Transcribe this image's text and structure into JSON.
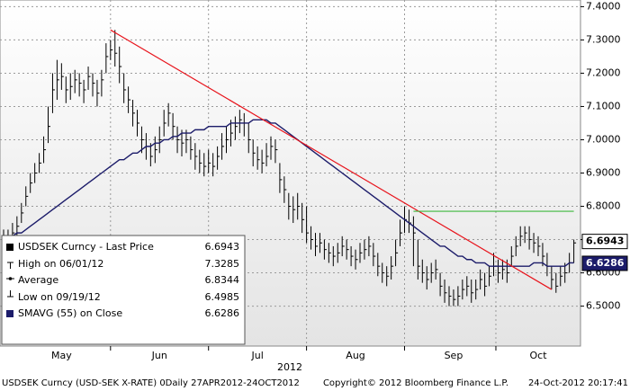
{
  "chart_data": {
    "type": "ohlc",
    "legend": [
      {
        "label": "USDSEK Curncy - Last Price",
        "value": 6.6943
      },
      {
        "label": "High on 06/01/12",
        "value": 7.3285
      },
      {
        "label": "Average",
        "value": 6.8344
      },
      {
        "label": "Low on 09/19/12",
        "value": 6.4985
      },
      {
        "label": "SMAVG (55) on Close",
        "value": 6.6286
      }
    ],
    "year_label": "2012",
    "footer_left": "USDSEK Curncy (USD-SEK X-RATE) 0Daily 27APR2012-24OCT2012",
    "footer_center": "Copyright© 2012 Bloomberg Finance L.P.",
    "footer_right": "24-Oct-2012 20:17:41",
    "ylim": [
      6.38,
      7.42
    ],
    "yticks": [
      {
        "value": 6.5,
        "label": "6.5000"
      },
      {
        "value": 6.6,
        "label": "6.6000"
      },
      {
        "value": 6.7,
        "label": "6.7000"
      },
      {
        "value": 6.8,
        "label": "6.8000"
      },
      {
        "value": 6.9,
        "label": "6.9000"
      },
      {
        "value": 7.0,
        "label": "7.0000"
      },
      {
        "value": 7.1,
        "label": "7.1000"
      },
      {
        "value": 7.2,
        "label": "7.2000"
      },
      {
        "value": 7.3,
        "label": "7.3000"
      },
      {
        "value": 7.4,
        "label": "7.4000"
      }
    ],
    "grid": true,
    "categories": [
      null,
      null,
      null,
      null,
      null,
      null,
      null,
      null,
      null,
      null,
      null,
      null,
      null,
      "May",
      null,
      null,
      null,
      null,
      null,
      null,
      null,
      null,
      null,
      null,
      null,
      null,
      null,
      null,
      null,
      null,
      null,
      null,
      null,
      null,
      null,
      "Jun",
      null,
      null,
      null,
      null,
      null,
      null,
      null,
      null,
      null,
      null,
      null,
      null,
      null,
      null,
      null,
      null,
      null,
      null,
      null,
      null,
      null,
      "Jul",
      null,
      null,
      null,
      null,
      null,
      null,
      null,
      null,
      null,
      null,
      null,
      null,
      null,
      null,
      null,
      null,
      null,
      null,
      null,
      null,
      null,
      "Aug",
      null,
      null,
      null,
      null,
      null,
      null,
      null,
      null,
      null,
      null,
      null,
      null,
      null,
      null,
      null,
      null,
      null,
      null,
      null,
      null,
      null,
      "Sep",
      null,
      null,
      null,
      null,
      null,
      null,
      null,
      null,
      null,
      null,
      null,
      null,
      null,
      null,
      null,
      null,
      null,
      null,
      "Oct",
      null,
      null,
      null,
      null,
      null,
      null,
      null,
      null
    ],
    "price": {
      "color": "#000000",
      "high": [
        6.73,
        6.73,
        6.75,
        6.77,
        6.81,
        6.86,
        6.9,
        6.93,
        6.96,
        7.01,
        7.1,
        7.2,
        7.24,
        7.23,
        7.19,
        7.2,
        7.21,
        7.2,
        7.18,
        7.22,
        7.2,
        7.18,
        7.21,
        7.29,
        7.3,
        7.33,
        7.28,
        7.2,
        7.16,
        7.12,
        7.09,
        7.04,
        7.02,
        6.99,
        7.01,
        7.04,
        7.09,
        7.11,
        7.08,
        7.04,
        7.03,
        7.03,
        7.01,
        6.99,
        6.97,
        6.96,
        6.97,
        6.96,
        6.98,
        7.02,
        7.04,
        7.06,
        7.07,
        7.09,
        7.08,
        7.05,
        7.0,
        6.98,
        6.97,
        6.99,
        7.01,
        7.0,
        6.93,
        6.89,
        6.84,
        6.83,
        6.84,
        6.81,
        6.8,
        6.74,
        6.72,
        6.72,
        6.7,
        6.69,
        6.68,
        6.69,
        6.71,
        6.7,
        6.68,
        6.67,
        6.69,
        6.7,
        6.71,
        6.69,
        6.66,
        6.63,
        6.62,
        6.65,
        6.7,
        6.76,
        6.8,
        6.79,
        6.77,
        6.7,
        6.64,
        6.62,
        6.63,
        6.64,
        6.6,
        6.58,
        6.56,
        6.55,
        6.56,
        6.58,
        6.59,
        6.58,
        6.58,
        6.61,
        6.6,
        6.62,
        6.66,
        6.64,
        6.64,
        6.64,
        6.68,
        6.71,
        6.74,
        6.74,
        6.74,
        6.72,
        6.71,
        6.69,
        6.66,
        6.62,
        6.6,
        6.62,
        6.63,
        6.66,
        6.7
      ],
      "low": [
        6.68,
        6.69,
        6.7,
        6.71,
        6.75,
        6.8,
        6.84,
        6.87,
        6.9,
        6.93,
        6.99,
        7.08,
        7.12,
        7.15,
        7.11,
        7.12,
        7.14,
        7.13,
        7.11,
        7.15,
        7.13,
        7.1,
        7.13,
        7.2,
        7.24,
        7.22,
        7.17,
        7.11,
        7.08,
        7.04,
        7.01,
        6.96,
        6.94,
        6.92,
        6.93,
        6.96,
        7.01,
        7.04,
        7.0,
        6.96,
        6.95,
        6.96,
        6.94,
        6.91,
        6.9,
        6.89,
        6.9,
        6.89,
        6.91,
        6.94,
        6.96,
        6.98,
        7.0,
        7.02,
        7.01,
        6.96,
        6.92,
        6.91,
        6.9,
        6.92,
        6.94,
        6.93,
        6.84,
        6.81,
        6.76,
        6.75,
        6.76,
        6.72,
        6.69,
        6.67,
        6.65,
        6.66,
        6.64,
        6.63,
        6.62,
        6.63,
        6.65,
        6.64,
        6.62,
        6.61,
        6.63,
        6.64,
        6.65,
        6.62,
        6.59,
        6.57,
        6.56,
        6.58,
        6.62,
        6.68,
        6.72,
        6.72,
        6.62,
        6.58,
        6.57,
        6.55,
        6.57,
        6.58,
        6.53,
        6.51,
        6.5,
        6.5,
        6.5,
        6.52,
        6.53,
        6.51,
        6.52,
        6.55,
        6.53,
        6.56,
        6.59,
        6.57,
        6.58,
        6.57,
        6.62,
        6.65,
        6.68,
        6.69,
        6.67,
        6.66,
        6.65,
        6.62,
        6.59,
        6.55,
        6.54,
        6.56,
        6.57,
        6.6,
        6.63
      ],
      "close": [
        6.7,
        6.71,
        6.72,
        6.74,
        6.78,
        6.83,
        6.87,
        6.9,
        6.93,
        6.97,
        7.04,
        7.15,
        7.18,
        7.19,
        7.15,
        7.16,
        7.18,
        7.17,
        7.15,
        7.19,
        7.17,
        7.14,
        7.18,
        7.25,
        7.27,
        7.26,
        7.22,
        7.15,
        7.12,
        7.08,
        7.05,
        7.0,
        6.98,
        6.95,
        6.97,
        7.0,
        7.05,
        7.08,
        7.04,
        7.0,
        6.99,
        7.0,
        6.97,
        6.95,
        6.93,
        6.92,
        6.93,
        6.92,
        6.95,
        6.98,
        7.0,
        7.02,
        7.04,
        7.06,
        7.05,
        7.0,
        6.96,
        6.94,
        6.93,
        6.95,
        6.98,
        6.97,
        6.88,
        6.85,
        6.8,
        6.79,
        6.8,
        6.76,
        6.72,
        6.7,
        6.68,
        6.69,
        6.67,
        6.66,
        6.65,
        6.66,
        6.68,
        6.67,
        6.65,
        6.64,
        6.66,
        6.67,
        6.68,
        6.65,
        6.62,
        6.6,
        6.59,
        6.62,
        6.66,
        6.72,
        6.76,
        6.75,
        6.72,
        6.62,
        6.6,
        6.58,
        6.6,
        6.61,
        6.56,
        6.54,
        6.53,
        6.52,
        6.53,
        6.55,
        6.56,
        6.54,
        6.55,
        6.58,
        6.56,
        6.59,
        6.62,
        6.6,
        6.61,
        6.6,
        6.65,
        6.68,
        6.71,
        6.72,
        6.7,
        6.69,
        6.68,
        6.65,
        6.62,
        6.58,
        6.56,
        6.59,
        6.6,
        6.63,
        6.69
      ]
    },
    "sma": {
      "color": "#1c1c6a",
      "values": [
        6.71,
        6.71,
        6.71,
        6.72,
        6.72,
        6.73,
        6.74,
        6.75,
        6.76,
        6.77,
        6.78,
        6.79,
        6.8,
        6.81,
        6.82,
        6.83,
        6.84,
        6.85,
        6.86,
        6.87,
        6.88,
        6.89,
        6.9,
        6.91,
        6.92,
        6.93,
        6.94,
        6.94,
        6.95,
        6.96,
        6.96,
        6.97,
        6.98,
        6.98,
        6.99,
        6.99,
        7.0,
        7.0,
        7.01,
        7.01,
        7.02,
        7.02,
        7.02,
        7.03,
        7.03,
        7.03,
        7.04,
        7.04,
        7.04,
        7.04,
        7.04,
        7.05,
        7.05,
        7.05,
        7.05,
        7.05,
        7.06,
        7.06,
        7.06,
        7.06,
        7.05,
        7.05,
        7.04,
        7.03,
        7.02,
        7.01,
        7.0,
        6.99,
        6.98,
        6.97,
        6.96,
        6.95,
        6.94,
        6.93,
        6.92,
        6.91,
        6.9,
        6.89,
        6.88,
        6.87,
        6.86,
        6.85,
        6.84,
        6.83,
        6.82,
        6.81,
        6.8,
        6.79,
        6.78,
        6.77,
        6.76,
        6.75,
        6.74,
        6.73,
        6.72,
        6.71,
        6.7,
        6.69,
        6.68,
        6.68,
        6.67,
        6.66,
        6.65,
        6.65,
        6.64,
        6.64,
        6.63,
        6.63,
        6.63,
        6.62,
        6.62,
        6.62,
        6.62,
        6.62,
        6.62,
        6.62,
        6.62,
        6.62,
        6.62,
        6.63,
        6.63,
        6.63,
        6.62,
        6.62,
        6.62,
        6.62,
        6.62,
        6.63,
        6.63
      ]
    },
    "trend_lines": [
      {
        "color": "#e8141c",
        "x": [
          24,
          123
        ],
        "y": [
          7.33,
          6.55
        ]
      },
      {
        "color": "#3cb83c",
        "x": [
          92,
          128
        ],
        "y": [
          6.785,
          6.785
        ]
      }
    ]
  }
}
